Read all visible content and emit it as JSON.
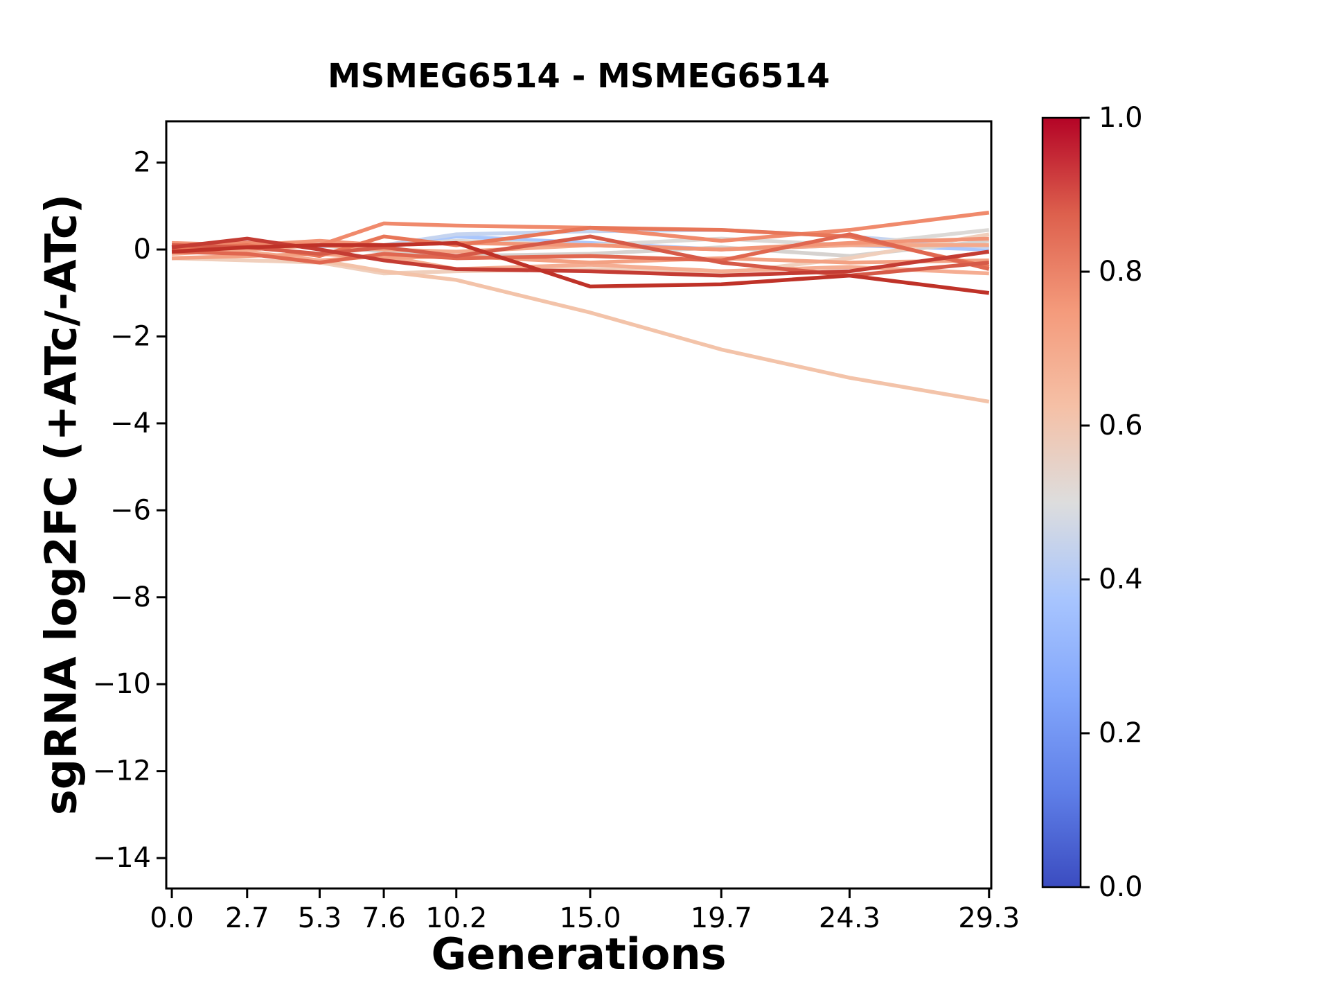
{
  "chart_data": {
    "type": "line",
    "title": "MSMEG6514 - MSMEG6514",
    "xlabel": "Generations",
    "ylabel": "sgRNA log2FC (+ATc/-ATc)",
    "x": [
      0.0,
      2.7,
      5.3,
      7.6,
      10.2,
      15.0,
      19.7,
      24.3,
      29.3
    ],
    "x_tick_labels": [
      "0.0",
      "2.7",
      "5.3",
      "7.6",
      "10.2",
      "15.0",
      "19.7",
      "24.3",
      "29.3"
    ],
    "y_ticks": [
      2,
      0,
      -2,
      -4,
      -6,
      -8,
      -10,
      -12,
      -14
    ],
    "y_tick_labels": [
      "2",
      "0",
      "−2",
      "−4",
      "−6",
      "−8",
      "−10",
      "−12",
      "−14"
    ],
    "xlim": [
      -0.2,
      29.38
    ],
    "ylim": [
      -14.7,
      2.95
    ],
    "grid": false,
    "legend": "none",
    "series": [
      {
        "color_value": 0.4,
        "color": "#aac7fd",
        "values": [
          0.0,
          0.12,
          0.08,
          0.05,
          0.3,
          0.15,
          0.0,
          0.1,
          0.0
        ]
      },
      {
        "color_value": 0.45,
        "color": "#c5d4f0",
        "values": [
          0.05,
          0.1,
          0.15,
          0.1,
          0.35,
          0.42,
          0.45,
          0.3,
          0.05
        ]
      },
      {
        "color_value": 0.5,
        "color": "#d6d2cf",
        "values": [
          0.05,
          0.0,
          0.1,
          -0.05,
          -0.15,
          -0.1,
          0.05,
          -0.15,
          0.2
        ]
      },
      {
        "color_value": 0.52,
        "color": "#dcd9d6",
        "values": [
          0.1,
          0.05,
          0.15,
          0.1,
          0.2,
          0.1,
          0.25,
          0.1,
          0.45
        ]
      },
      {
        "color_value": 0.58,
        "color": "#f0cfbc",
        "values": [
          -0.2,
          -0.25,
          -0.3,
          -0.55,
          -0.5,
          -0.45,
          -0.55,
          -0.2,
          0.35
        ]
      },
      {
        "color_value": 0.62,
        "color": "#f3c3a9",
        "values": [
          0.0,
          -0.1,
          -0.25,
          -0.5,
          -0.7,
          -1.45,
          -2.3,
          -2.95,
          -3.5
        ]
      },
      {
        "color_value": 0.68,
        "color": "#f5ad92",
        "values": [
          0.0,
          -0.05,
          -0.25,
          -0.15,
          -0.45,
          -0.35,
          -0.5,
          -0.4,
          -0.55
        ]
      },
      {
        "color_value": 0.7,
        "color": "#f4a98b",
        "values": [
          -0.1,
          0.0,
          0.1,
          0.0,
          -0.05,
          0.1,
          0.0,
          0.1,
          0.1
        ]
      },
      {
        "color_value": 0.72,
        "color": "#f3a183",
        "values": [
          -0.2,
          -0.15,
          -0.1,
          -0.2,
          -0.15,
          -0.3,
          -0.2,
          -0.3,
          -0.25
        ]
      },
      {
        "color_value": 0.75,
        "color": "#f29577",
        "values": [
          0.15,
          0.1,
          0.2,
          0.1,
          0.15,
          0.1,
          0.0,
          0.15,
          0.25
        ]
      },
      {
        "color_value": 0.78,
        "color": "#f08a6c",
        "values": [
          0.1,
          0.15,
          0.1,
          0.6,
          0.55,
          0.5,
          0.2,
          0.45,
          0.85
        ]
      },
      {
        "color_value": 0.82,
        "color": "#e87658",
        "values": [
          0.0,
          0.1,
          -0.15,
          0.3,
          0.1,
          0.5,
          0.45,
          0.3,
          -0.4
        ]
      },
      {
        "color_value": 0.85,
        "color": "#e06750",
        "values": [
          -0.05,
          -0.1,
          -0.3,
          -0.1,
          -0.2,
          -0.15,
          -0.25,
          0.35,
          -0.45
        ]
      },
      {
        "color_value": 0.88,
        "color": "#d65a48",
        "values": [
          0.1,
          0.05,
          -0.1,
          0.05,
          -0.15,
          0.3,
          -0.3,
          -0.6,
          -0.3
        ]
      },
      {
        "color_value": 0.93,
        "color": "#c43c33",
        "values": [
          0.05,
          0.25,
          0.0,
          -0.25,
          -0.45,
          -0.5,
          -0.6,
          -0.5,
          -0.05
        ]
      },
      {
        "color_value": 0.95,
        "color": "#bf3228",
        "values": [
          -0.05,
          0.05,
          0.1,
          0.1,
          0.15,
          -0.85,
          -0.8,
          -0.6,
          -1.0
        ]
      }
    ],
    "colorbar": {
      "min": 0.0,
      "max": 1.0,
      "ticks": [
        0.0,
        0.2,
        0.4,
        0.6,
        0.8,
        1.0
      ],
      "tick_labels": [
        "0.0",
        "0.2",
        "0.4",
        "0.6",
        "0.8",
        "1.0"
      ],
      "colormap": "coolwarm",
      "gradient_stops": [
        [
          "0%",
          "#3b4cc0"
        ],
        [
          "12.5%",
          "#5f7fe8"
        ],
        [
          "25%",
          "#82a6fb"
        ],
        [
          "37.5%",
          "#a8c5fe"
        ],
        [
          "50%",
          "#dddddd"
        ],
        [
          "62.5%",
          "#f5c0a6"
        ],
        [
          "75%",
          "#f49a7b"
        ],
        [
          "87.5%",
          "#dd604d"
        ],
        [
          "100%",
          "#b40426"
        ]
      ]
    }
  }
}
